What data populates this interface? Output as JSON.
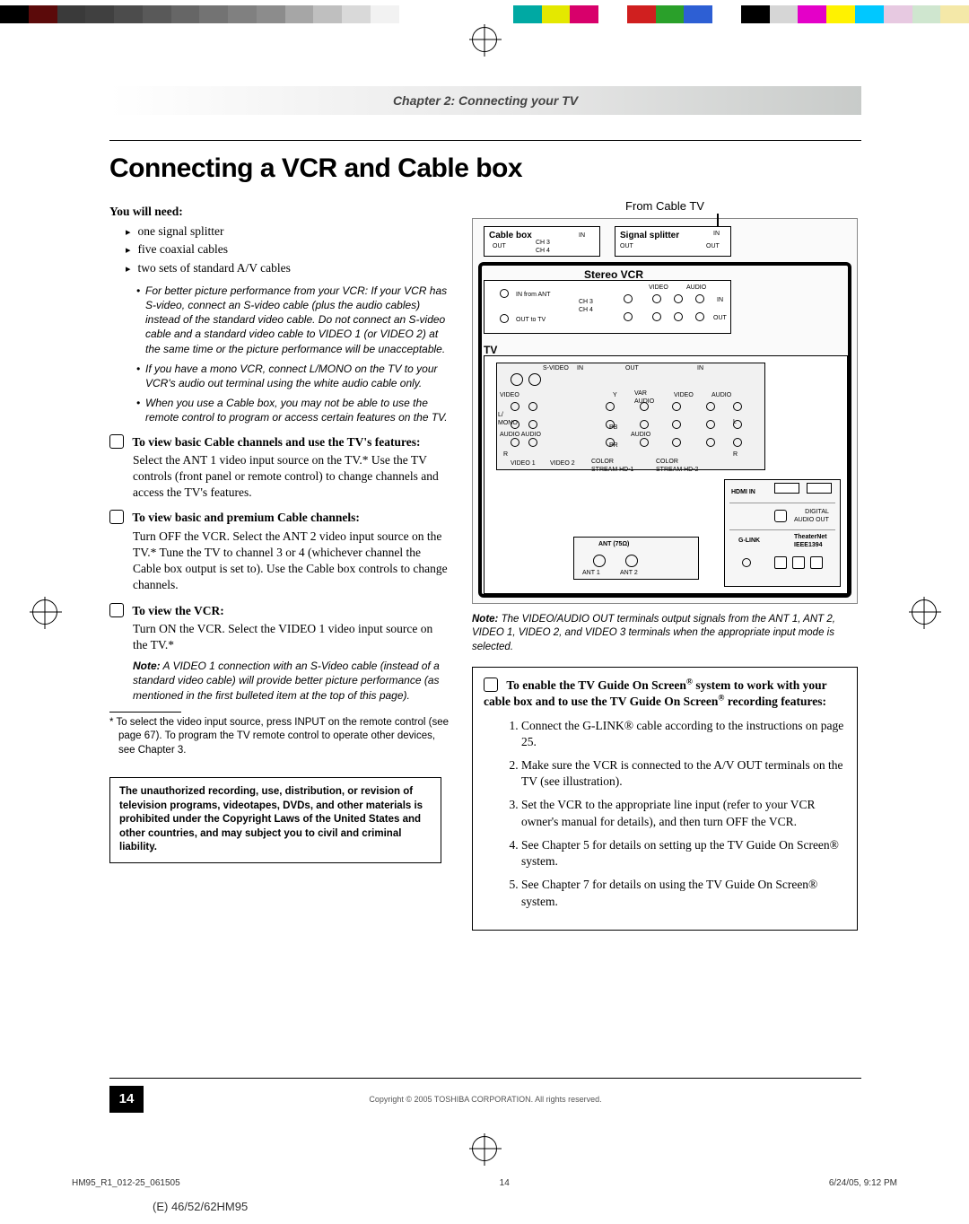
{
  "colorbar": [
    "#000000",
    "#5b0a0a",
    "#3a3a3a",
    "#404040",
    "#4c4c4c",
    "#595959",
    "#666666",
    "#737373",
    "#808080",
    "#8c8c8c",
    "#a6a6a6",
    "#bfbfbf",
    "#d9d9d9",
    "#f2f2f2",
    "#ffffff",
    "#ffffff",
    "#ffffff",
    "#ffffff",
    "#00a9a3",
    "#e4e800",
    "#d8006b",
    "#ffffff",
    "#d01f1f",
    "#2aa02a",
    "#2d5fd4",
    "#ffffff",
    "#000000",
    "#d6d6d6",
    "#e400c8",
    "#fff200",
    "#00c8ff",
    "#e7c9e1",
    "#cfe6cf",
    "#f4e8a8"
  ],
  "chapter_bar": "Chapter 2: Connecting your TV",
  "title": "Connecting a VCR and Cable box",
  "you_will_need_label": "You will need:",
  "need_items": [
    "one signal splitter",
    "five coaxial cables",
    "two sets of standard A/V cables"
  ],
  "sub_notes": [
    "For better picture performance from your VCR: If your VCR has S-video, connect an S-video cable (plus the audio cables) instead of the standard video cable. Do not connect an S-video cable and a standard video cable to VIDEO 1 (or VIDEO 2) at the same time or the picture performance will be unacceptable.",
    "If you have a mono VCR, connect L/MONO on the TV to your VCR's audio out terminal using the white audio cable only.",
    "When you use a Cable box, you may not be able to use the remote control to program or access certain features on the TV."
  ],
  "sec1_head": "To view basic Cable channels and use the TV's features:",
  "sec1_body": "Select the ANT 1 video input source on the TV.* Use the TV controls (front panel or remote control) to change channels and access the TV's features.",
  "sec2_head": "To view basic and premium Cable channels:",
  "sec2_body": "Turn OFF the VCR. Select the ANT 2 video input source on the TV.* Tune the TV to channel 3 or 4 (whichever channel the Cable box output is set to). Use the Cable box controls to change channels.",
  "sec3_head": "To view the VCR:",
  "sec3_body": "Turn ON the VCR. Select the VIDEO 1 video input source on the TV.*",
  "sec3_note_label": "Note:",
  "sec3_note": " A VIDEO 1 connection with an S-Video cable (instead of a standard video cable) will provide better picture performance (as mentioned in the first bulleted item at the top of this page).",
  "footnote": "* To select the video input source, press INPUT on the remote control (see page 67). To program the TV remote control to operate other devices, see Chapter 3.",
  "warn": "The unauthorized recording, use, distribution, or revision of television programs, videotapes, DVDs, and other materials is prohibited under the Copyright Laws of the United States and other countries, and may subject you to civil and criminal liability.",
  "diagram": {
    "from_cable": "From Cable TV",
    "cable_box": "Cable box",
    "signal_splitter": "Signal splitter",
    "stereo_vcr": "Stereo VCR",
    "tv": "TV",
    "in": "IN",
    "out": "OUT",
    "ch34": "CH 3\nCH 4",
    "in_from_ant": "IN from ANT",
    "out_to_tv": "OUT to TV",
    "video": "VIDEO",
    "audio": "AUDIO",
    "hdmi": "HDMI IN",
    "glink": "G-LINK",
    "theaternet": "TheaterNet\nIEEE1394",
    "digital_audio": "DIGITAL\nAUDIO OUT",
    "ant75": "ANT (75Ω)",
    "ant1": "ANT 1",
    "ant2": "ANT 2",
    "video1": "VIDEO 1",
    "video2": "VIDEO 2",
    "colorstream1": "COLOR\nSTREAM HD-1",
    "colorstream2": "COLOR\nSTREAM HD-2",
    "svideo": "S-VIDEO",
    "var_audio": "VAR\nAUDIO",
    "audio_audio": "AUDIO  AUDIO",
    "lmono": "L/\nMONO",
    "r": "R",
    "y": "Y",
    "pb": "PB",
    "pr": "PR",
    "l": "L"
  },
  "right_note_label": "Note:",
  "right_note": " The VIDEO/AUDIO OUT terminals output signals from the ANT 1, ANT 2, VIDEO 1, VIDEO 2, and VIDEO 3 terminals when the appropriate input mode is selected.",
  "rbox_head_1": "To enable the TV Guide On Screen",
  "rbox_head_2": " system to work with your cable box and to use the TV Guide On Screen",
  "rbox_head_3": " recording features:",
  "rbox_steps": [
    "Connect the G-LINK® cable according to the instructions on page 25.",
    "Make sure the VCR is connected to the A/V OUT terminals on the TV (see illustration).",
    "Set the VCR to the appropriate line input (refer to your VCR owner's manual for details), and then turn OFF the VCR.",
    "See Chapter 5 for details on setting up the TV Guide On Screen® system.",
    "See Chapter 7 for details on using the TV Guide On Screen® system."
  ],
  "page_number": "14",
  "copyright": "Copyright © 2005 TOSHIBA CORPORATION. All rights reserved.",
  "trail_left": "HM95_R1_012-25_061505",
  "trail_mid": "14",
  "trail_right": "6/24/05, 9:12 PM",
  "cutoff": "(E) 46/52/62HM95"
}
